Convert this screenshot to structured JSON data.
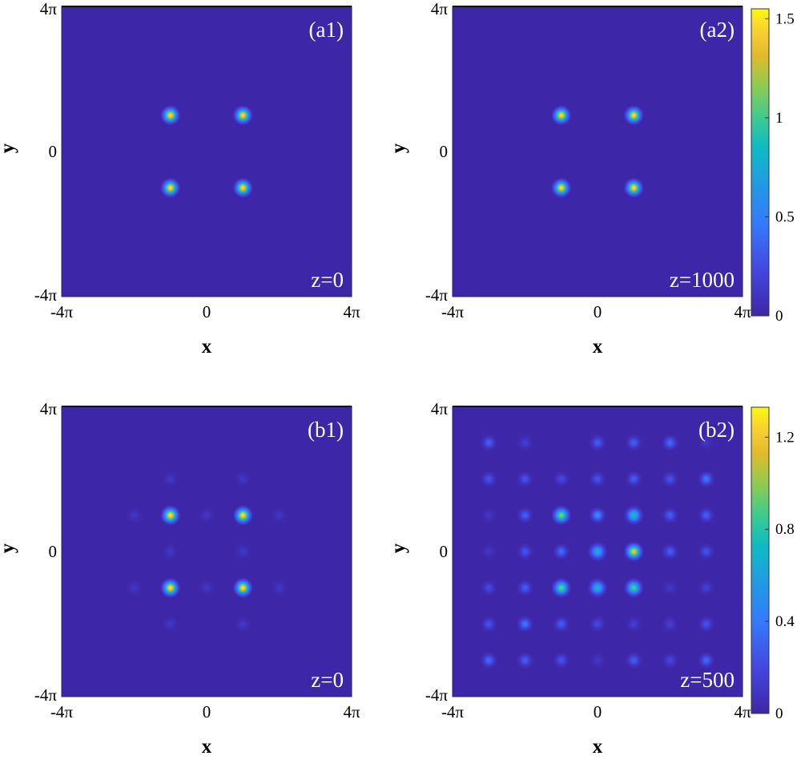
{
  "chart_data": [
    {
      "type": "heatmap",
      "label": "(a1)",
      "annotation": "z=0",
      "xlabel": "x",
      "ylabel": "y",
      "xticks": [
        "-4π",
        "0",
        "4π"
      ],
      "yticks": [
        "4π",
        "0",
        "-4π"
      ],
      "xlim": [
        -4,
        4
      ],
      "ylim": [
        -4,
        4
      ],
      "units": "π",
      "spots": [
        {
          "x": -1,
          "y": 1,
          "v": 1.5
        },
        {
          "x": 1,
          "y": 1,
          "v": 1.5
        },
        {
          "x": -1,
          "y": -1,
          "v": 1.5
        },
        {
          "x": 1,
          "y": -1,
          "v": 1.5
        }
      ]
    },
    {
      "type": "heatmap",
      "label": "(a2)",
      "annotation": "z=1000",
      "xlabel": "x",
      "ylabel": "y",
      "xticks": [
        "-4π",
        "0",
        "4π"
      ],
      "yticks": [
        "4π",
        "0",
        "-4π"
      ],
      "xlim": [
        -4,
        4
      ],
      "ylim": [
        -4,
        4
      ],
      "units": "π",
      "spots": [
        {
          "x": -1,
          "y": 1,
          "v": 1.5
        },
        {
          "x": 1,
          "y": 1,
          "v": 1.5
        },
        {
          "x": -1,
          "y": -1,
          "v": 1.5
        },
        {
          "x": 1,
          "y": -1,
          "v": 1.5
        }
      ],
      "colorbar": {
        "min": 0,
        "max": 1.55,
        "ticks": [
          "0",
          "0.5",
          "1",
          "1.5"
        ],
        "tick_values": [
          0,
          0.5,
          1,
          1.5
        ]
      }
    },
    {
      "type": "heatmap",
      "label": "(b1)",
      "annotation": "z=0",
      "xlabel": "x",
      "ylabel": "y",
      "xticks": [
        "-4π",
        "0",
        "4π"
      ],
      "yticks": [
        "4π",
        "0",
        "-4π"
      ],
      "xlim": [
        -4,
        4
      ],
      "ylim": [
        -4,
        4
      ],
      "units": "π",
      "spots": [
        {
          "x": -1,
          "y": 1,
          "v": 1.3
        },
        {
          "x": 1,
          "y": 1,
          "v": 1.3
        },
        {
          "x": -1,
          "y": -1,
          "v": 1.3
        },
        {
          "x": 1,
          "y": -1,
          "v": 1.3
        },
        {
          "x": -1,
          "y": 2,
          "v": 0.1
        },
        {
          "x": 1,
          "y": 2,
          "v": 0.1
        },
        {
          "x": -1,
          "y": -2,
          "v": 0.1
        },
        {
          "x": 1,
          "y": -2,
          "v": 0.1
        },
        {
          "x": -2,
          "y": 1,
          "v": 0.1
        },
        {
          "x": 2,
          "y": 1,
          "v": 0.1
        },
        {
          "x": -2,
          "y": -1,
          "v": 0.1
        },
        {
          "x": 2,
          "y": -1,
          "v": 0.1
        },
        {
          "x": 0,
          "y": 1,
          "v": 0.1
        },
        {
          "x": 0,
          "y": -1,
          "v": 0.1
        },
        {
          "x": -1,
          "y": 0,
          "v": 0.1
        },
        {
          "x": 1,
          "y": 0,
          "v": 0.1
        }
      ]
    },
    {
      "type": "heatmap",
      "label": "(b2)",
      "annotation": "z=500",
      "xlabel": "x",
      "ylabel": "y",
      "xticks": [
        "-4π",
        "0",
        "4π"
      ],
      "yticks": [
        "4π",
        "0",
        "-4π"
      ],
      "xlim": [
        -4,
        4
      ],
      "ylim": [
        -4,
        4
      ],
      "units": "π",
      "grid_x": [
        -3,
        -2,
        -1,
        0,
        1,
        2,
        3
      ],
      "grid_y": [
        3,
        2,
        1,
        0,
        -1,
        -2,
        -3
      ],
      "grid_values": [
        [
          0.3,
          0.15,
          0.0,
          0.3,
          0.3,
          0.35,
          0.1
        ],
        [
          0.25,
          0.25,
          0.2,
          0.25,
          0.3,
          0.25,
          0.4
        ],
        [
          0.1,
          0.3,
          1.0,
          0.5,
          0.75,
          0.3,
          0.3
        ],
        [
          0.1,
          0.25,
          0.35,
          0.65,
          1.2,
          0.3,
          0.25
        ],
        [
          0.2,
          0.3,
          0.95,
          0.7,
          0.9,
          0.1,
          0.15
        ],
        [
          0.25,
          0.4,
          0.3,
          0.2,
          0.15,
          0.15,
          0.25
        ],
        [
          0.35,
          0.3,
          0.25,
          0.1,
          0.3,
          0.2,
          0.35
        ]
      ],
      "colorbar": {
        "min": 0,
        "max": 1.33,
        "ticks": [
          "0",
          "0.4",
          "0.8",
          "1.2"
        ],
        "tick_values": [
          0,
          0.4,
          0.8,
          1.2
        ]
      }
    }
  ]
}
